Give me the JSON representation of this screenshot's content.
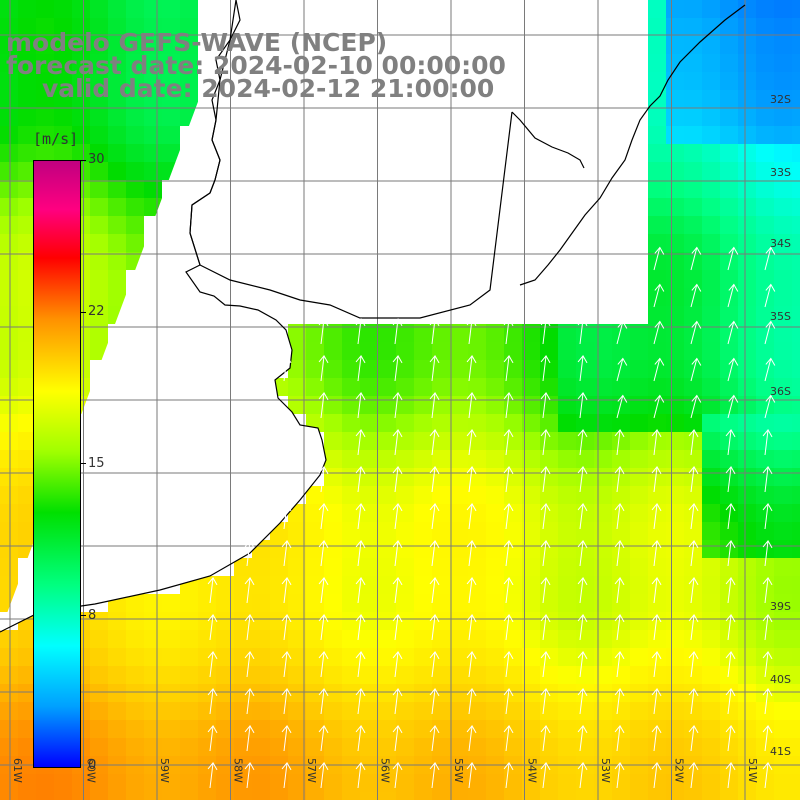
{
  "title": {
    "line1": "modelo GEFS-WAVE (NCEP)",
    "line2": "forecast date: 2024-02-10 00:00:00",
    "line3": "valid date: 2024-02-12 21:00:00"
  },
  "colorbar": {
    "unit": "[m/s]",
    "ticks": [
      "30",
      "22",
      "15",
      "8",
      "0"
    ],
    "tick_values": [
      30,
      22,
      15,
      8,
      0
    ],
    "range": [
      0,
      30
    ]
  },
  "map": {
    "lon_labels": [
      "61W",
      "60W",
      "59W",
      "58W",
      "57W",
      "56W",
      "55W",
      "54W",
      "53W",
      "52W",
      "51W"
    ],
    "lat_labels": [
      "32S",
      "33S",
      "34S",
      "35S",
      "36S",
      "39S",
      "40S",
      "41S"
    ],
    "colors": {
      "land": "#ffffff",
      "coast": "#000000",
      "grid": "#7a7a7a",
      "arrows": "#ffffff"
    }
  }
}
